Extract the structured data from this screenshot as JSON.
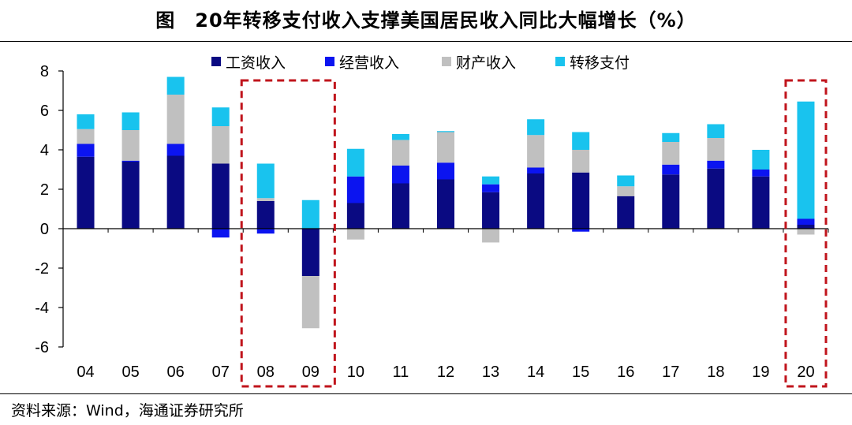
{
  "title": "图　20年转移支付收入支撑美国居民收入同比大幅增长（%）",
  "source": "资料来源：Wind，海通证券研究所",
  "chart_data": {
    "type": "bar",
    "stacked": true,
    "categories": [
      "04",
      "05",
      "06",
      "07",
      "08",
      "09",
      "10",
      "11",
      "12",
      "13",
      "14",
      "15",
      "16",
      "17",
      "18",
      "19",
      "20"
    ],
    "series": [
      {
        "name": "工资收入",
        "color": "#0a0a82",
        "values": [
          3.65,
          3.4,
          3.7,
          3.3,
          1.4,
          -2.4,
          1.3,
          2.3,
          2.5,
          1.85,
          2.8,
          2.85,
          1.65,
          2.75,
          3.05,
          2.65,
          0.2
        ]
      },
      {
        "name": "经营收入",
        "color": "#0b14f0",
        "values": [
          0.65,
          0.05,
          0.6,
          -0.45,
          -0.25,
          0,
          1.35,
          0.9,
          0.85,
          0.4,
          0.3,
          -0.15,
          0,
          0.5,
          0.4,
          0.35,
          0.3
        ]
      },
      {
        "name": "财产收入",
        "color": "#c0c0c0",
        "values": [
          0.75,
          1.55,
          2.5,
          1.9,
          0.15,
          -2.65,
          -0.55,
          1.3,
          1.55,
          -0.7,
          1.65,
          1.15,
          0.5,
          1.15,
          1.15,
          0,
          -0.3
        ]
      },
      {
        "name": "转移支付",
        "color": "#19c3ee",
        "values": [
          0.75,
          0.9,
          0.9,
          0.95,
          1.75,
          1.45,
          1.4,
          0.3,
          0.05,
          0.4,
          0.8,
          0.9,
          0.55,
          0.45,
          0.7,
          1.0,
          5.95
        ]
      }
    ],
    "ylim": [
      -6,
      8
    ],
    "yticks": [
      -6,
      -4,
      -2,
      0,
      2,
      4,
      6,
      8
    ],
    "legend_position": "top-center",
    "grid": false,
    "highlight_boxes": [
      [
        "08",
        "09"
      ],
      [
        "20",
        "20"
      ]
    ],
    "highlight_color": "#c0141c"
  }
}
